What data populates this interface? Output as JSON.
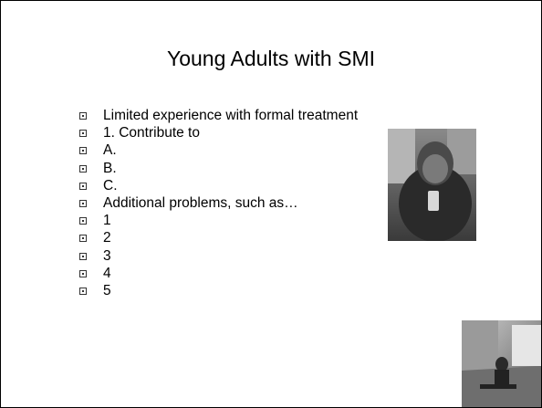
{
  "slide": {
    "title": "Young Adults with SMI",
    "bullets": [
      "Limited experience with formal treatment",
      "1. Contribute to",
      "A.",
      "B.",
      "C.",
      "Additional problems, such as…",
      "1",
      "2",
      "3",
      "4",
      "5"
    ]
  }
}
